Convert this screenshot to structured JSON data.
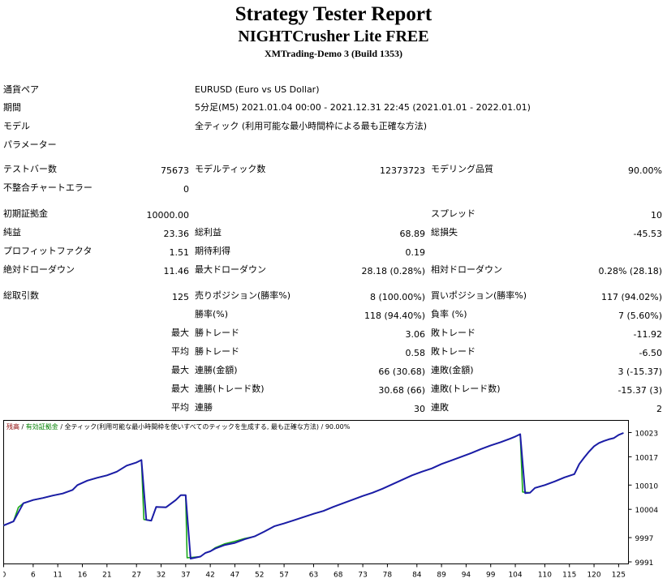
{
  "header": {
    "title": "Strategy Tester Report",
    "ea_name": "NIGHTCrusher Lite FREE",
    "server": "XMTrading-Demo 3 (Build 1353)"
  },
  "settings": {
    "symbol_label": "通貨ペア",
    "symbol_value": "EURUSD (Euro vs US Dollar)",
    "period_label": "期間",
    "period_value": "5分足(M5) 2021.01.04 00:00 - 2021.12.31 22:45 (2021.01.01 - 2022.01.01)",
    "model_label": "モデル",
    "model_value": "全ティック (利用可能な最小時間枠による最も正確な方法)",
    "params_label": "パラメーター"
  },
  "stats": {
    "bars_label": "テストバー数",
    "bars_value": "75673",
    "ticks_label": "モデルティック数",
    "ticks_value": "12373723",
    "quality_label": "モデリング品質",
    "quality_value": "90.00%",
    "errors_label": "不整合チャートエラー",
    "errors_value": "0",
    "deposit_label": "初期証拠金",
    "deposit_value": "10000.00",
    "spread_label": "スプレッド",
    "spread_value": "10",
    "net_label": "純益",
    "net_value": "23.36",
    "gross_profit_label": "総利益",
    "gross_profit_value": "68.89",
    "gross_loss_label": "総損失",
    "gross_loss_value": "-45.53",
    "pf_label": "プロフィットファクタ",
    "pf_value": "1.51",
    "expected_label": "期待利得",
    "expected_value": "0.19",
    "abs_dd_label": "絶対ドローダウン",
    "abs_dd_value": "11.46",
    "max_dd_label": "最大ドローダウン",
    "max_dd_value": "28.18 (0.28%)",
    "rel_dd_label": "相対ドローダウン",
    "rel_dd_value": "0.28% (28.18)",
    "total_label": "総取引数",
    "total_value": "125",
    "short_label": "売りポジション(勝率%)",
    "short_value": "8 (100.00%)",
    "long_label": "買いポジション(勝率%)",
    "long_value": "117 (94.02%)",
    "win_rate_label": "勝率(%)",
    "win_rate_value": "118 (94.40%)",
    "loss_rate_label": "負率 (%)",
    "loss_rate_value": "7 (5.60%)",
    "max_prefix": "最大",
    "avg_prefix": "平均",
    "largest_win_label": "勝トレード",
    "largest_win_value": "3.06",
    "largest_loss_label": "敗トレード",
    "largest_loss_value": "-11.92",
    "avg_win_label": "勝トレード",
    "avg_win_value": "0.58",
    "avg_loss_label": "敗トレード",
    "avg_loss_value": "-6.50",
    "max_cons_wins_money_label": "連勝(金額)",
    "max_cons_wins_money_value": "66 (30.68)",
    "max_cons_losses_money_label": "連敗(金額)",
    "max_cons_losses_money_value": "3 (-15.37)",
    "max_cons_wins_count_label": "連勝(トレード数)",
    "max_cons_wins_count_value": "30.68 (66)",
    "max_cons_losses_count_label": "連敗(トレード数)",
    "max_cons_losses_count_value": "-15.37 (3)",
    "avg_cons_wins_label": "連勝",
    "avg_cons_wins_value": "30",
    "avg_cons_losses_label": "連敗",
    "avg_cons_losses_value": "2"
  },
  "colors": {
    "balance": "#1c1ca8",
    "equity": "#1aa81a",
    "legend_balance": "#8b0000",
    "legend_equity": "#008000"
  },
  "chart_data": {
    "type": "line",
    "legend": {
      "balance": "残高",
      "sep1": " / ",
      "equity": "有効証拠金",
      "rest": " / 全ティック(利用可能な最小時間枠を使いすべてのティックを生成する, 最も正確な方法) / 90.00%"
    },
    "x_ticks": [
      "0",
      "6",
      "11",
      "16",
      "21",
      "27",
      "32",
      "37",
      "42",
      "47",
      "52",
      "57",
      "63",
      "68",
      "73",
      "78",
      "84",
      "89",
      "94",
      "99",
      "104",
      "110",
      "115",
      "120",
      "125"
    ],
    "y_ticks": [
      "10023",
      "10017",
      "10010",
      "10004",
      "9997",
      "9991"
    ],
    "xlim": [
      0,
      127
    ],
    "ylim": [
      9990.5,
      10026
    ],
    "series": [
      {
        "name": "残高",
        "x": [
          0,
          2,
          4,
          6,
          8,
          10,
          12,
          14,
          15,
          17,
          19,
          21,
          23,
          25,
          27,
          28,
          29,
          30,
          31,
          33,
          35,
          36,
          37,
          38,
          40,
          41,
          42,
          43,
          45,
          47,
          49,
          51,
          53,
          55,
          57,
          59,
          61,
          63,
          65,
          67,
          69,
          71,
          73,
          75,
          77,
          79,
          81,
          83,
          85,
          87,
          89,
          91,
          93,
          95,
          97,
          99,
          101,
          103,
          104,
          105,
          106,
          107,
          108,
          110,
          112,
          114,
          116,
          117,
          118,
          119,
          120,
          121,
          122,
          123,
          124,
          125,
          126
        ],
        "y": [
          10000.0,
          10001.0,
          10005.5,
          10006.3,
          10006.8,
          10007.4,
          10007.9,
          10008.8,
          10010.0,
          10011.1,
          10011.8,
          10012.4,
          10013.3,
          10014.8,
          10015.6,
          10016.2,
          10001.4,
          10001.2,
          10004.6,
          10004.5,
          10006.3,
          10007.5,
          10007.5,
          9991.8,
          9992.3,
          9993.2,
          9993.6,
          9994.3,
          9995.2,
          9995.7,
          9996.6,
          9997.3,
          9998.5,
          9999.8,
          10000.5,
          10001.3,
          10002.1,
          10002.9,
          10003.6,
          10004.6,
          10005.5,
          10006.4,
          10007.3,
          10008.1,
          10009.1,
          10010.2,
          10011.3,
          10012.4,
          10013.3,
          10014.1,
          10015.2,
          10016.1,
          10017.0,
          10017.9,
          10018.9,
          10019.8,
          10020.6,
          10021.5,
          10022.0,
          10022.6,
          10008.0,
          10008.1,
          10009.3,
          10010.0,
          10010.9,
          10011.9,
          10012.7,
          10015.2,
          10016.8,
          10018.3,
          10019.6,
          10020.4,
          10020.9,
          10021.3,
          10021.6,
          10022.4,
          10022.9
        ]
      },
      {
        "name": "有効証拠金",
        "x": [
          0,
          2,
          3,
          4,
          6,
          8,
          10,
          12,
          14,
          15,
          17,
          19,
          21,
          23,
          25,
          27,
          28,
          28.5,
          30,
          31,
          33,
          35,
          36,
          37,
          37.3,
          40,
          41,
          42,
          43,
          45,
          47,
          49,
          51,
          53,
          55,
          57,
          59,
          61,
          63,
          65,
          67,
          69,
          71,
          73,
          75,
          77,
          79,
          81,
          83,
          85,
          87,
          89,
          91,
          93,
          95,
          97,
          99,
          101,
          103,
          104,
          105,
          105.5,
          107,
          108,
          110,
          112,
          114,
          116,
          117,
          118,
          119,
          120,
          121,
          122,
          123,
          124,
          125,
          126
        ],
        "y": [
          10000.0,
          10001.0,
          10004.5,
          10005.5,
          10006.3,
          10006.8,
          10007.4,
          10007.9,
          10008.8,
          10010.0,
          10011.1,
          10011.8,
          10012.4,
          10013.3,
          10014.8,
          10015.6,
          10016.2,
          10001.5,
          10001.2,
          10004.6,
          10004.5,
          10006.3,
          10007.5,
          10007.5,
          9992.0,
          9992.3,
          9993.2,
          9993.6,
          9994.5,
          9995.5,
          9996.1,
          9996.8,
          9997.3,
          9998.5,
          9999.8,
          10000.5,
          10001.3,
          10002.1,
          10002.9,
          10003.6,
          10004.6,
          10005.5,
          10006.4,
          10007.3,
          10008.1,
          10009.1,
          10010.2,
          10011.3,
          10012.4,
          10013.3,
          10014.1,
          10015.2,
          10016.1,
          10017.0,
          10017.9,
          10018.9,
          10019.8,
          10020.6,
          10021.5,
          10022.0,
          10022.6,
          10008.3,
          10008.1,
          10009.3,
          10010.0,
          10010.9,
          10011.9,
          10012.7,
          10015.2,
          10016.8,
          10018.3,
          10019.6,
          10020.4,
          10020.9,
          10021.3,
          10021.6,
          10022.4,
          10022.9
        ]
      }
    ]
  }
}
